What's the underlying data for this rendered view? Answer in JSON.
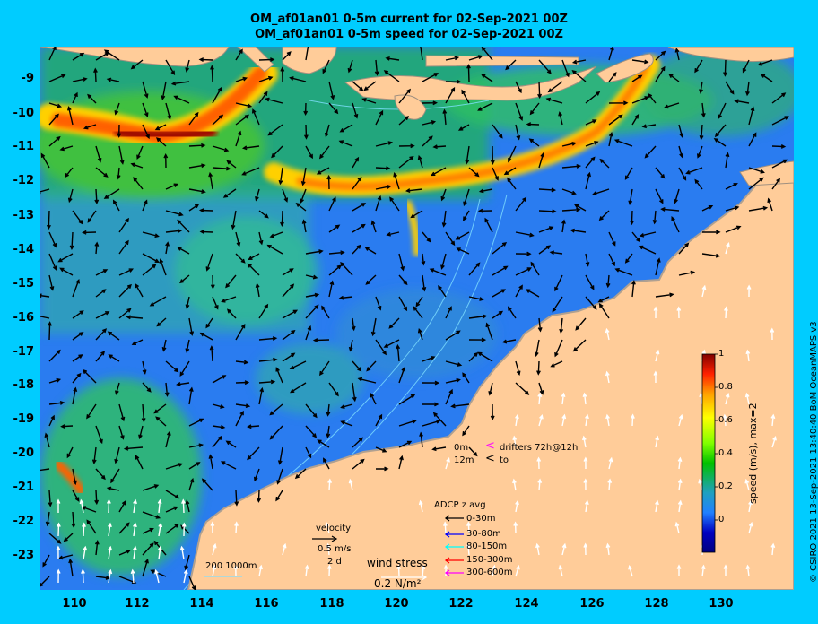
{
  "title_line1": "OM_af01an01 0-5m current for 02-Sep-2021 00Z",
  "title_line2": "OM_af01an01 0-5m speed for 02-Sep-2021 00Z",
  "y_axis_labels": [
    "-9",
    "-10",
    "-11",
    "-12",
    "-13",
    "-14",
    "-15",
    "-16",
    "-17",
    "-18",
    "-19",
    "-20",
    "-21",
    "-22",
    "-23"
  ],
  "x_axis_labels": [
    "110",
    "112",
    "114",
    "116",
    "118",
    "120",
    "122",
    "124",
    "126",
    "128",
    "130"
  ],
  "colorbar": {
    "label": "speed (m/s), max=2",
    "ticks": [
      "1",
      "0.8",
      "0.6",
      "0.4",
      "0.2",
      "0"
    ],
    "colors": [
      "#800000",
      "#ff0000",
      "#ffa000",
      "#ffff00",
      "#80ff00",
      "#00c000",
      "#20a0a0",
      "#2080ff",
      "#0000c0",
      "#000080"
    ]
  },
  "drifters": {
    "row1_depth": "0m",
    "row1_symbol": "<",
    "row1_text": "drifters 72h@12h",
    "row2_depth": "12m",
    "row2_symbol": "<",
    "row2_text": "to",
    "row1_color": "#ff00ff",
    "row2_color": "#000000"
  },
  "adcp": {
    "title": "ADCP z avg",
    "items": [
      {
        "label": "0-30m",
        "color": "#000000"
      },
      {
        "label": "30-80m",
        "color": "#0000ff"
      },
      {
        "label": "80-150m",
        "color": "#00ffff"
      },
      {
        "label": "150-300m",
        "color": "#ff0000"
      },
      {
        "label": "300-600m",
        "color": "#ff00ff"
      }
    ]
  },
  "velocity_legend": {
    "title": "velocity",
    "speed": "0.5 m/s",
    "duration": "2 d"
  },
  "wind_legend": {
    "title": "wind stress",
    "value": "0.2 N/m²"
  },
  "isobath_legend": "200  1000m",
  "copyright": "© CSIRO 2021  13-Sep-2021 13:40:40 BoM OceanMAPS v3",
  "colors": {
    "land": "#ffcc99",
    "ocean_bg": "#2a7cf0",
    "frame": "#00ccff"
  }
}
